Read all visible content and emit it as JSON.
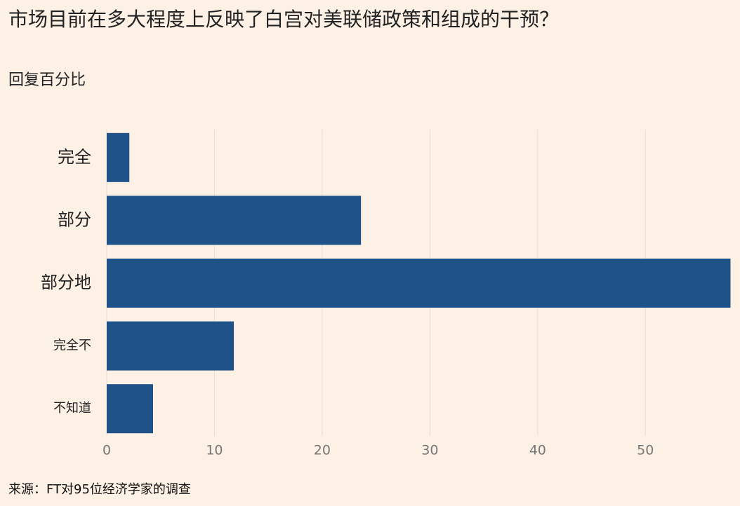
{
  "chart_data": {
    "type": "bar",
    "orientation": "horizontal",
    "title": "市场目前在多大程度上反映了白宫对美联储政策和组成的干预？",
    "subtitle": "回复百分比",
    "source": "来源：FT对95位经济学家的调查",
    "categories": [
      "完全",
      "部分",
      "部分地",
      "完全不",
      "不知道"
    ],
    "values": [
      2.1,
      23.6,
      57.9,
      11.8,
      4.3
    ],
    "color": "#1f5289",
    "xlim": [
      0,
      58
    ],
    "xticks": [
      0,
      10,
      20,
      30,
      40,
      50
    ],
    "grid": true
  }
}
